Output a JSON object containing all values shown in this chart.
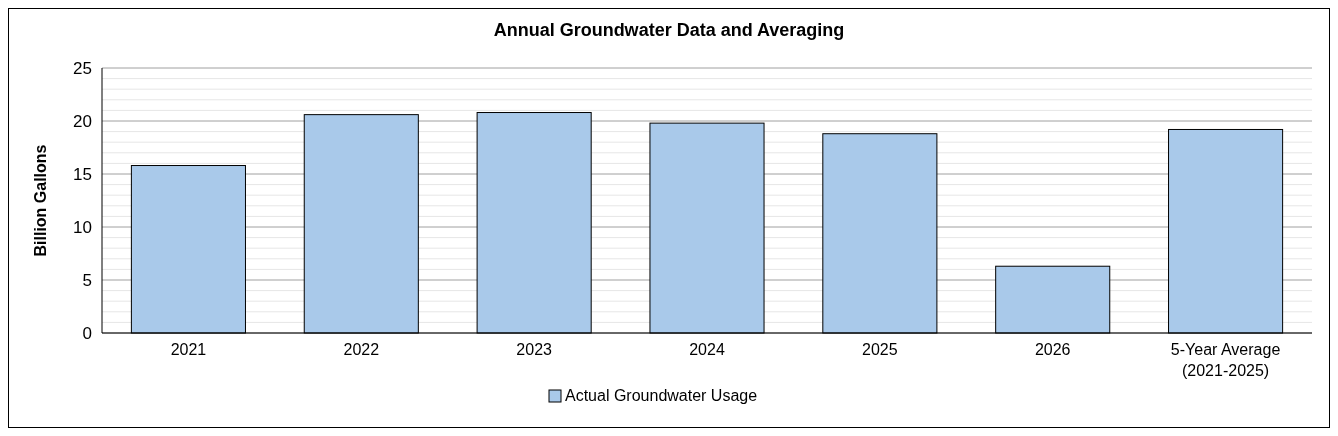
{
  "chart_data": {
    "type": "bar",
    "title": "Annual Groundwater Data and Averaging",
    "ylabel": "Billion Gallons",
    "categories": [
      "2021",
      "2022",
      "2023",
      "2024",
      "2025",
      "2026",
      "5-Year Average\n(2021-2025)"
    ],
    "series": [
      {
        "name": "Actual Groundwater Usage",
        "color": "#a9c9ea",
        "values": [
          15.8,
          20.6,
          20.8,
          19.8,
          18.8,
          6.3,
          19.2
        ]
      }
    ],
    "ylim": [
      0,
      25
    ],
    "yticks": [
      0,
      {
        "value": 1,
        "label": null
      },
      {
        "value": 2,
        "label": null
      },
      {
        "value": 3,
        "label": null
      },
      {
        "value": 4,
        "label": null
      },
      5,
      {
        "value": 6,
        "label": null
      },
      {
        "value": 7,
        "label": null
      },
      {
        "value": 8,
        "label": null
      },
      {
        "value": 9,
        "label": null
      },
      10,
      {
        "value": 11,
        "label": null
      },
      {
        "value": 12,
        "label": null
      },
      {
        "value": 13,
        "label": null
      },
      {
        "value": 14,
        "label": null
      },
      15,
      {
        "value": 16,
        "label": null
      },
      {
        "value": 17,
        "label": null
      },
      {
        "value": 18,
        "label": null
      },
      {
        "value": 19,
        "label": null
      },
      20,
      {
        "value": 21,
        "label": null
      },
      {
        "value": 22,
        "label": null
      },
      {
        "value": 23,
        "label": null
      },
      {
        "value": 24,
        "label": null
      },
      25
    ],
    "grid": "y",
    "legend": "bottom"
  }
}
